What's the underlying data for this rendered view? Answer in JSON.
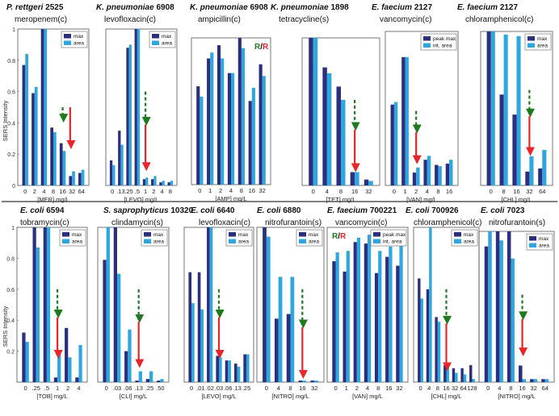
{
  "y_axis_label": "SERS Intensity",
  "legend_labels": {
    "max": "max",
    "area": "area",
    "peak_max": "peak max",
    "int_area": "int. area"
  },
  "colors": {
    "max": "#2b2f7e",
    "area": "#2ea6df",
    "green_arrow": "#1f7a1f",
    "red_arrow": "#e8262a",
    "divider": "#333333"
  },
  "chart_data": [
    {
      "type": "bar",
      "organism": "P. rettgeri",
      "strain": "2525",
      "drug": "meropenem(c)",
      "xlabel": "[MER] mg/L",
      "categories": [
        "0",
        "2",
        "4",
        "8",
        "16",
        "32",
        "64"
      ],
      "yticks": [
        "1",
        "0.8",
        "0.6",
        "0.4",
        "0.2",
        "0"
      ],
      "ylim": [
        0,
        1
      ],
      "legend": [
        "max",
        "area"
      ],
      "rr": false,
      "series": [
        {
          "name": "max",
          "values": [
            0.77,
            0.59,
            1.0,
            0.37,
            0.27,
            0.06,
            0.08
          ]
        },
        {
          "name": "area",
          "values": [
            0.84,
            0.63,
            1.0,
            0.34,
            0.22,
            0.09,
            0.1
          ]
        }
      ],
      "arrow": {
        "green_x": 4.0,
        "red_x": 4.8,
        "from": 0.5,
        "to": 0.26
      }
    },
    {
      "type": "bar",
      "organism": "K. pneumoniae",
      "strain": "6908",
      "drug": "levofloxacin(c)",
      "xlabel": "[LEVO] mg/L",
      "categories": [
        "0",
        ".13",
        ".25",
        ".5",
        "1",
        "2",
        "4",
        "8"
      ],
      "yticks": [],
      "ylim": [
        0,
        1
      ],
      "legend": [
        "max",
        "area"
      ],
      "rr": false,
      "series": [
        {
          "name": "max",
          "values": [
            0.16,
            0.35,
            0.88,
            1.0,
            0.04,
            0.04,
            0.02,
            0.02
          ]
        },
        {
          "name": "area",
          "values": [
            0.13,
            0.26,
            0.9,
            1.0,
            0.05,
            0.06,
            0.03,
            0.03
          ]
        }
      ],
      "arrow": {
        "green_x": 4.0,
        "red_x": 4.0,
        "from": 0.6,
        "to": 0.12
      }
    },
    {
      "type": "bar",
      "organism": "K. pneumoniae",
      "strain": "6908",
      "drug": "ampicillin(c)",
      "xlabel": "[AMP] mg/L",
      "categories": [
        "0",
        "1",
        "2",
        "4",
        "8",
        "16",
        "32"
      ],
      "yticks": [],
      "ylim": [
        0,
        1
      ],
      "legend": [],
      "rr": true,
      "rr_text": [
        "R",
        "/",
        "R"
      ],
      "series": [
        {
          "name": "max",
          "values": [
            0.67,
            0.86,
            0.95,
            0.76,
            1.0,
            0.57,
            0.82
          ]
        },
        {
          "name": "area",
          "values": [
            0.6,
            0.9,
            0.86,
            0.76,
            0.93,
            0.66,
            0.74
          ]
        }
      ],
      "arrow": null
    },
    {
      "type": "bar",
      "organism": "K. pneumoniae",
      "strain": "1898",
      "drug": "tetracycline(s)",
      "xlabel": "[TET] mg/L",
      "categories": [
        "0",
        "4",
        "8",
        "16",
        "32"
      ],
      "yticks": [],
      "ylim": [
        0,
        1
      ],
      "legend": [],
      "rr": false,
      "series": [
        {
          "name": "max",
          "values": [
            1.0,
            0.8,
            0.67,
            0.09,
            0.04
          ]
        },
        {
          "name": "area",
          "values": [
            1.0,
            0.76,
            0.58,
            0.09,
            0.03
          ]
        }
      ],
      "arrow": {
        "green_x": 3.0,
        "red_x": 3.0,
        "from": 0.58,
        "to": 0.12
      }
    },
    {
      "type": "bar",
      "organism": "E. faecium",
      "strain": "2127",
      "drug": "vancomycin(c)",
      "xlabel": "[VAN] mg/L",
      "categories": [
        "0",
        "1",
        "2",
        "4",
        "8",
        "16"
      ],
      "yticks": [],
      "ylim": [
        0,
        1.2
      ],
      "legend": [
        "peak_max",
        "int_area"
      ],
      "rr": false,
      "series": [
        {
          "name": "peak max",
          "values": [
            0.63,
            1.0,
            0.1,
            0.2,
            0.16,
            0.17
          ]
        },
        {
          "name": "int. area",
          "values": [
            0.65,
            1.0,
            0.14,
            0.23,
            0.15,
            0.2
          ]
        }
      ],
      "arrow": {
        "green_x": 2.0,
        "red_x": 2.0,
        "from": 0.58,
        "to": 0.2
      }
    },
    {
      "type": "bar",
      "organism": "E. faecium",
      "strain": "2127",
      "drug": "chloramphenicol(c)",
      "xlabel": "[CHL] mg/L",
      "categories": [
        "0",
        "8",
        "16",
        "32",
        "64"
      ],
      "yticks": [],
      "ylim": [
        0,
        1
      ],
      "legend": [
        "max",
        "area"
      ],
      "rr": false,
      "series": [
        {
          "name": "max",
          "values": [
            1.0,
            0.59,
            0.46,
            0.09,
            0.11
          ]
        },
        {
          "name": "area",
          "values": [
            1.0,
            0.98,
            0.97,
            0.19,
            0.23
          ]
        }
      ],
      "arrow": {
        "green_x": 3.0,
        "red_x": 3.0,
        "from": 0.62,
        "to": 0.22
      }
    },
    {
      "type": "bar",
      "organism": "E. coli",
      "strain": "6594",
      "drug": "tobramycin(c)",
      "xlabel": "[TOB] mg/L",
      "categories": [
        "0",
        ".25",
        ".5",
        "1",
        "2",
        "4"
      ],
      "yticks": [
        "1",
        "0.8",
        "0.6",
        "0.4",
        "0.2"
      ],
      "ylim": [
        0,
        1
      ],
      "legend": [
        "max",
        "area"
      ],
      "rr": false,
      "series": [
        {
          "name": "max",
          "values": [
            0.32,
            1.0,
            1.0,
            0.03,
            0.35,
            0.03
          ]
        },
        {
          "name": "area",
          "values": [
            0.26,
            0.87,
            1.0,
            0.18,
            0.16,
            0.24
          ]
        }
      ],
      "arrow": {
        "green_x": 3.0,
        "red_x": 3.0,
        "from": 0.6,
        "to": 0.18
      }
    },
    {
      "type": "bar",
      "organism": "S. saprophyticus",
      "strain": "10320",
      "drug": "clindamycin(s)",
      "xlabel": "[CLI] mg/L",
      "categories": [
        "0",
        ".03",
        ".06",
        ".13",
        ".25",
        ".50"
      ],
      "yticks": [],
      "ylim": [
        0,
        1
      ],
      "legend": [
        "max",
        "area"
      ],
      "rr": false,
      "series": [
        {
          "name": "max",
          "values": [
            0.79,
            1.0,
            0.2,
            0.01,
            0.02,
            0.01
          ]
        },
        {
          "name": "area",
          "values": [
            1.0,
            0.7,
            0.34,
            0.07,
            0.07,
            0.02
          ]
        }
      ],
      "arrow": {
        "green_x": 3.0,
        "red_x": 3.0,
        "from": 0.6,
        "to": 0.12
      }
    },
    {
      "type": "bar",
      "organism": "E. coli",
      "strain": "6640",
      "drug": "levofloxacin(c)",
      "xlabel": "[LEVO] mg/L",
      "categories": [
        "0",
        ".01",
        ".02",
        ".03",
        ".06",
        ".13",
        ".25"
      ],
      "yticks": [],
      "ylim": [
        0,
        1
      ],
      "legend": [
        "max",
        "area"
      ],
      "rr": false,
      "series": [
        {
          "name": "max",
          "values": [
            0.71,
            0.71,
            1.0,
            0.17,
            0.14,
            0.12,
            0.18
          ]
        },
        {
          "name": "area",
          "values": [
            0.51,
            0.47,
            1.0,
            0.16,
            0.14,
            0.1,
            0.18
          ]
        }
      ],
      "arrow": {
        "green_x": 3.0,
        "red_x": 3.0,
        "from": 0.6,
        "to": 0.18
      }
    },
    {
      "type": "bar",
      "organism": "E. coli",
      "strain": "6880",
      "drug": "nitrofurantoin(s)",
      "xlabel": "[NITRO] mg/L",
      "categories": [
        "0",
        "4",
        "8",
        "16",
        "32"
      ],
      "yticks": [],
      "ylim": [
        0,
        1
      ],
      "legend": [
        "max",
        "area"
      ],
      "rr": false,
      "series": [
        {
          "name": "max",
          "values": [
            1.0,
            0.41,
            0.44,
            0.01,
            0.01
          ]
        },
        {
          "name": "area",
          "values": [
            0.94,
            0.68,
            0.68,
            0.01,
            0.01
          ]
        }
      ],
      "arrow": {
        "green_x": 3.0,
        "red_x": 3.0,
        "from": 0.6,
        "to": 0.05
      }
    },
    {
      "type": "bar",
      "organism": "E. faecium",
      "strain": "700221",
      "drug": "vancomycin(c)",
      "xlabel": "[VAN] mg/L",
      "categories": [
        "0",
        "1",
        "2",
        "4",
        "8",
        "16",
        "32"
      ],
      "yticks": [],
      "ylim": [
        0,
        1.05
      ],
      "legend": [
        "peak_max",
        "int_area"
      ],
      "rr": true,
      "rr_text": [
        "R",
        "/",
        "R"
      ],
      "series": [
        {
          "name": "peak max",
          "values": [
            0.82,
            0.75,
            0.95,
            0.94,
            0.74,
            0.85,
            0.79
          ]
        },
        {
          "name": "int. area",
          "values": [
            0.88,
            0.89,
            0.98,
            1.0,
            0.89,
            0.92,
            0.99
          ]
        }
      ],
      "arrow": null
    },
    {
      "type": "bar",
      "organism": "E. coli",
      "strain": "700926",
      "drug": "chloramphenicol(c)",
      "xlabel": "[CHL] mg/L",
      "categories": [
        "0",
        "4",
        "8",
        "16",
        "32",
        "64",
        "128"
      ],
      "yticks": [],
      "ylim": [
        0,
        1
      ],
      "legend": [
        "max",
        "area"
      ],
      "rr": false,
      "series": [
        {
          "name": "max",
          "values": [
            0.67,
            0.6,
            0.42,
            0.11,
            0.09,
            0.09,
            0.11
          ]
        },
        {
          "name": "area",
          "values": [
            0.54,
            1.0,
            0.39,
            0.12,
            0.06,
            0.05,
            0.02
          ]
        }
      ],
      "arrow": {
        "green_x": 3.0,
        "red_x": 3.0,
        "from": 0.6,
        "to": 0.1
      }
    },
    {
      "type": "bar",
      "organism": "E. coli",
      "strain": "7023",
      "drug": "nitrofurantoin(s)",
      "xlabel": "[NITRO] mg/L",
      "categories": [
        "0",
        "4",
        "8",
        "16",
        "32",
        "64"
      ],
      "yticks": [],
      "ylim": [
        0,
        1
      ],
      "legend": [
        "max",
        "area"
      ],
      "rr": false,
      "series": [
        {
          "name": "max",
          "values": [
            0.9,
            1.0,
            1.0,
            0.11,
            0.02,
            0.02
          ]
        },
        {
          "name": "area",
          "values": [
            1.0,
            0.94,
            0.82,
            0.02,
            0.02,
            0.02
          ]
        }
      ],
      "arrow": {
        "green_x": 3.0,
        "red_x": 3.0,
        "from": 0.58,
        "to": 0.2
      }
    }
  ]
}
